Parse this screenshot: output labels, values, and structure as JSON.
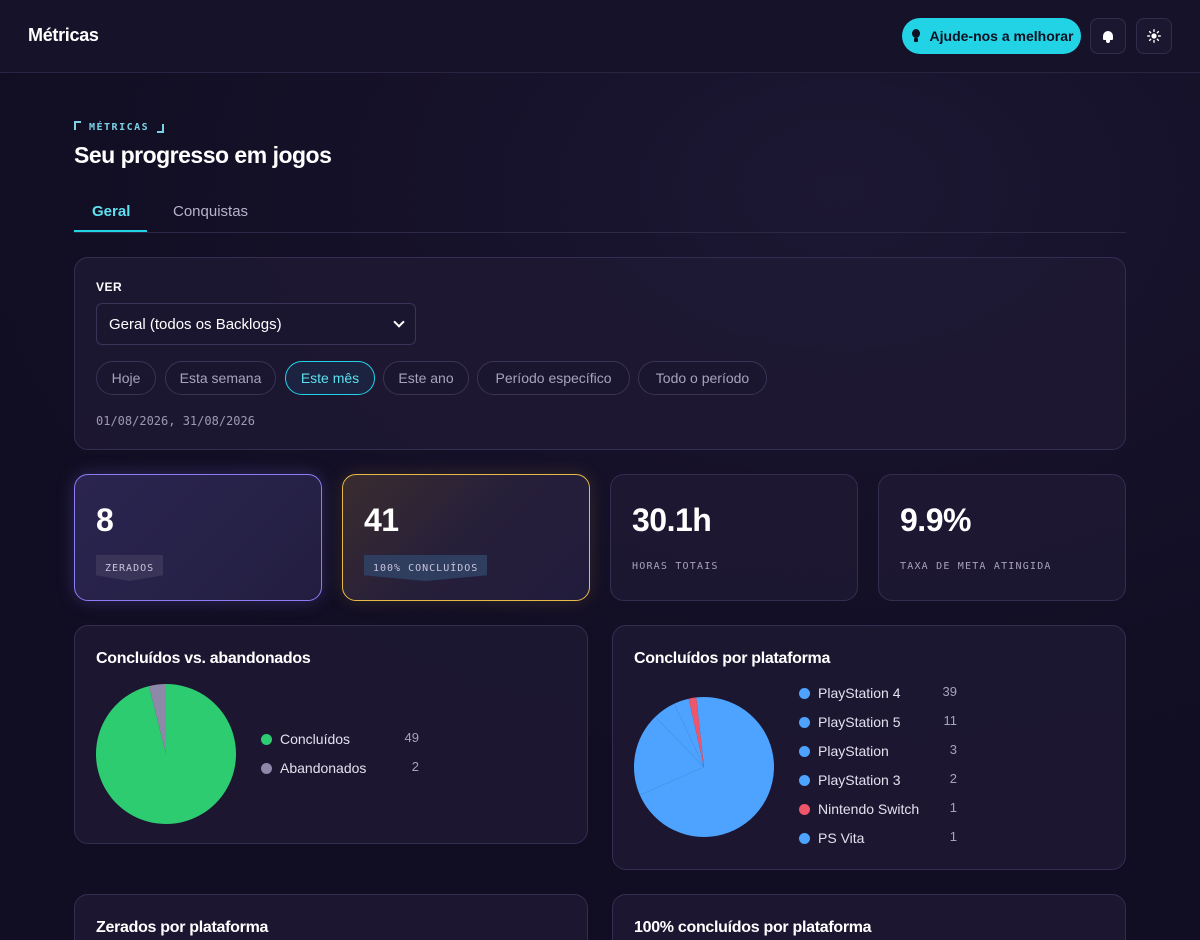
{
  "header": {
    "brand": "Métricas",
    "help_label": "Ajude-nos a melhorar",
    "bell_icon": "bell-icon",
    "theme_icon": "sun-icon"
  },
  "page": {
    "eyebrow": "MÉTRICAS",
    "title": "Seu progresso em jogos"
  },
  "tabs": [
    {
      "label": "Geral",
      "active": true
    },
    {
      "label": "Conquistas",
      "active": false
    }
  ],
  "filters": {
    "ver_label": "VER",
    "select_value": "Geral (todos os Backlogs)",
    "chips": [
      {
        "label": "Hoje",
        "active": false
      },
      {
        "label": "Esta semana",
        "active": false
      },
      {
        "label": "Este mês",
        "active": true
      },
      {
        "label": "Este ano",
        "active": false
      },
      {
        "label": "Período específico",
        "active": false
      },
      {
        "label": "Todo o período",
        "active": false
      }
    ],
    "date_range": "01/08/2026, 31/08/2026"
  },
  "stats": [
    {
      "value": "8",
      "label": "ZERADOS"
    },
    {
      "value": "41",
      "label": "100% CONCLUÍDOS"
    },
    {
      "value": "30.1h",
      "label": "HORAS TOTAIS"
    },
    {
      "value": "9.9%",
      "label": "TAXA DE META ATINGIDA"
    }
  ],
  "chart_data": [
    {
      "type": "pie",
      "title": "Concluídos vs. abandonados",
      "legend": "right",
      "slices": [
        {
          "name": "Concluídos",
          "value": 49,
          "color": "#2ecc71"
        },
        {
          "name": "Abandonados",
          "value": 2,
          "color": "#8e89a8"
        }
      ]
    },
    {
      "type": "pie",
      "title": "Concluídos por plataforma",
      "legend": "right",
      "slices": [
        {
          "name": "PlayStation 4",
          "value": 39,
          "color": "#4da3ff"
        },
        {
          "name": "PlayStation 5",
          "value": 11,
          "color": "#4da3ff"
        },
        {
          "name": "PlayStation",
          "value": 3,
          "color": "#4da3ff"
        },
        {
          "name": "PlayStation 3",
          "value": 2,
          "color": "#4da3ff"
        },
        {
          "name": "Nintendo Switch",
          "value": 1,
          "color": "#f0566a"
        },
        {
          "name": "PS Vita",
          "value": 1,
          "color": "#4da3ff"
        }
      ]
    }
  ],
  "bottom_cards": [
    {
      "title": "Zerados por plataforma"
    },
    {
      "title": "100% concluídos por plataforma"
    }
  ]
}
